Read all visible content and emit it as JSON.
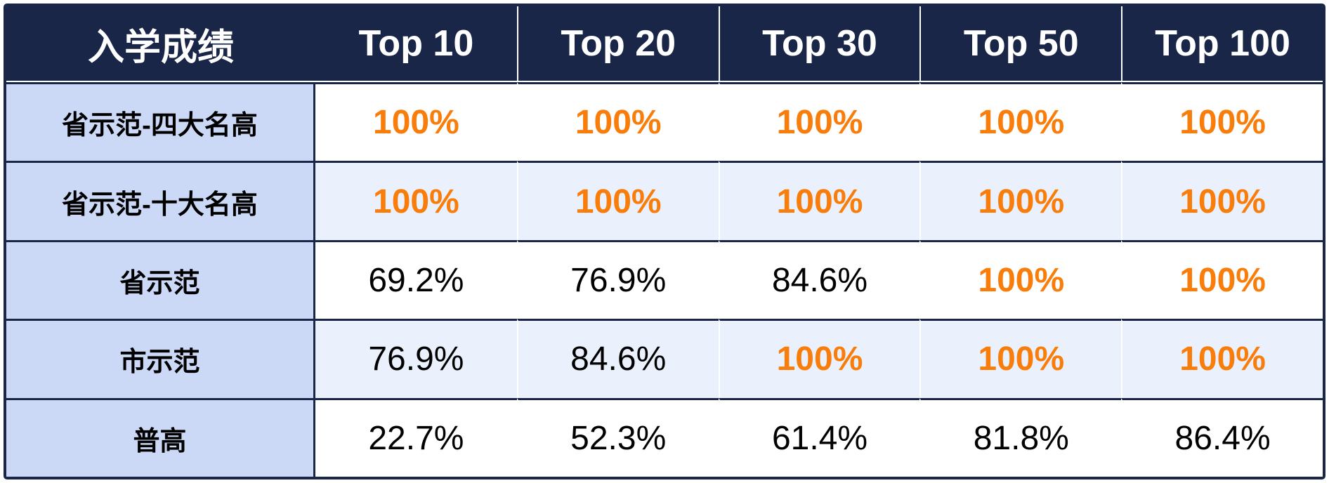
{
  "colors": {
    "header_bg": "#192648",
    "border": "#192648",
    "header_text": "#ffffff",
    "label_bg": "#ccd9f6",
    "row_tint_bg": "#eaf1fc",
    "row_plain_bg": "#ffffff",
    "highlight_text": "#f87d0a",
    "body_text": "#000000"
  },
  "chart_data": {
    "type": "table",
    "title": "入学成绩",
    "legend_position": "none",
    "grid": true,
    "columns": [
      "入学成绩",
      "Top 10",
      "Top 20",
      "Top 30",
      "Top 50",
      "Top 100"
    ],
    "rows": [
      {
        "label": "省示范-四大名高",
        "values": [
          "100%",
          "100%",
          "100%",
          "100%",
          "100%"
        ],
        "highlighted": [
          true,
          true,
          true,
          true,
          true
        ],
        "tinted": false
      },
      {
        "label": "省示范-十大名高",
        "values": [
          "100%",
          "100%",
          "100%",
          "100%",
          "100%"
        ],
        "highlighted": [
          true,
          true,
          true,
          true,
          true
        ],
        "tinted": true
      },
      {
        "label": "省示范",
        "values": [
          "69.2%",
          "76.9%",
          "84.6%",
          "100%",
          "100%"
        ],
        "highlighted": [
          false,
          false,
          false,
          true,
          true
        ],
        "tinted": false
      },
      {
        "label": "市示范",
        "values": [
          "76.9%",
          "84.6%",
          "100%",
          "100%",
          "100%"
        ],
        "highlighted": [
          false,
          false,
          true,
          true,
          true
        ],
        "tinted": true
      },
      {
        "label": "普高",
        "values": [
          "22.7%",
          "52.3%",
          "61.4%",
          "81.8%",
          "86.4%"
        ],
        "highlighted": [
          false,
          false,
          false,
          false,
          false
        ],
        "tinted": false
      }
    ]
  }
}
